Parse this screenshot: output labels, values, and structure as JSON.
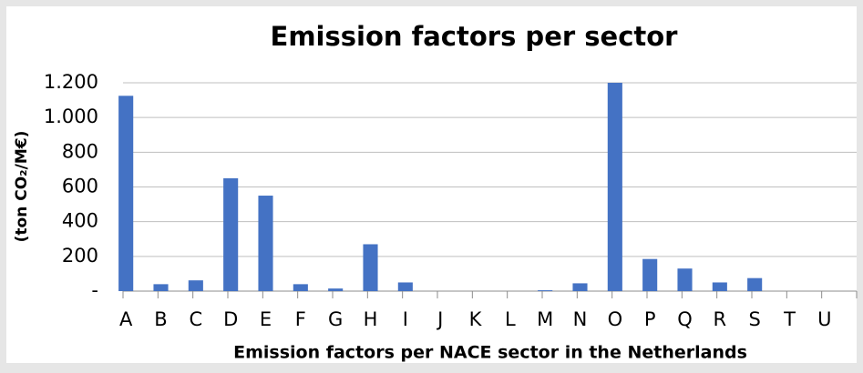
{
  "chart_data": {
    "type": "bar",
    "title": "Emission factors per sector",
    "x_label": "Emission factors per NACE sector in the Netherlands",
    "y_label": "(ton CO₂/M€)",
    "categories": [
      "A",
      "B",
      "C",
      "D",
      "E",
      "F",
      "G",
      "H",
      "I",
      "J",
      "K",
      "L",
      "M",
      "N",
      "O",
      "P",
      "Q",
      "R",
      "S",
      "T",
      "U"
    ],
    "values": [
      1125,
      40,
      62,
      650,
      550,
      40,
      15,
      270,
      50,
      0,
      0,
      0,
      5,
      45,
      1200,
      185,
      130,
      50,
      75,
      0,
      0
    ],
    "color": "#4472c4",
    "ylim": [
      0,
      1200
    ],
    "yticks": [
      {
        "value": 0,
        "label": "-"
      },
      200,
      400,
      600,
      800,
      {
        "value": 1000,
        "label": "1.000"
      },
      {
        "value": 1200,
        "label": "1.200"
      }
    ],
    "grid": true
  }
}
